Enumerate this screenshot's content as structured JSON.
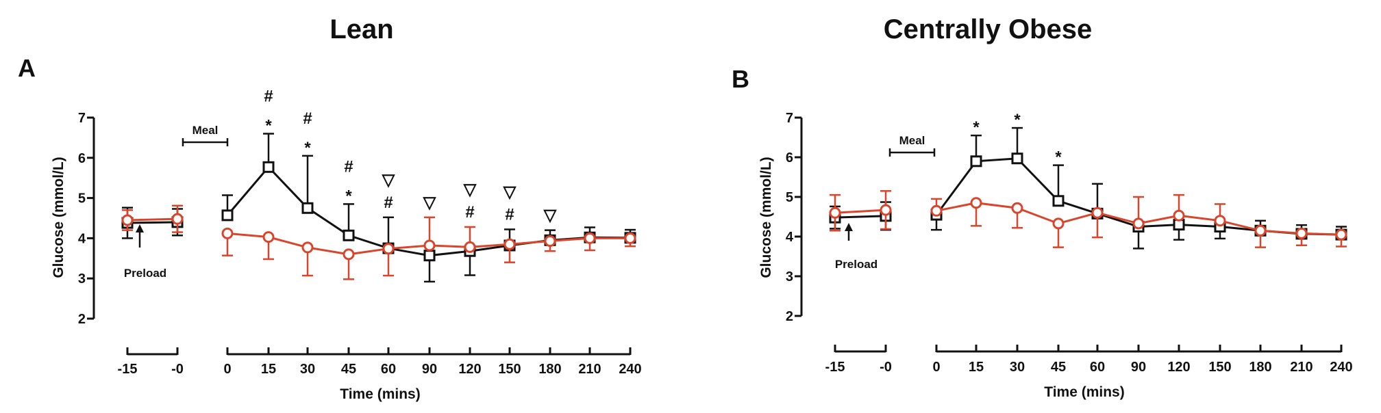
{
  "chart_data": [
    {
      "type": "line",
      "panel": "A",
      "title": "Lean",
      "xlabel": "Time (mins)",
      "ylabel": "Glucose (mmol/L)",
      "ylim": [
        2,
        7
      ],
      "yticks": [
        "2",
        "3",
        "4",
        "5",
        "6",
        "7"
      ],
      "pre_categories": [
        "-15",
        "-0"
      ],
      "categories": [
        "0",
        "15",
        "30",
        "45",
        "60",
        "90",
        "120",
        "150",
        "180",
        "210",
        "240"
      ],
      "series": [
        {
          "color": "#111111",
          "marker": "square",
          "pre_values": [
            4.38,
            4.4
          ],
          "pre_errors": [
            0.38,
            0.33
          ],
          "values": [
            4.57,
            5.77,
            4.75,
            4.07,
            3.75,
            3.57,
            3.68,
            3.82,
            3.95,
            4.02,
            4.01
          ],
          "errors": [
            0.5,
            0.83,
            1.3,
            0.78,
            0.77,
            0.65,
            0.6,
            0.4,
            0.25,
            0.25,
            0.2
          ],
          "error_dir": [
            "up",
            "up",
            "up",
            "up",
            "up",
            "down",
            "down",
            "up",
            "up",
            "up",
            "up"
          ]
        },
        {
          "color": "#d9452b",
          "marker": "circle",
          "pre_values": [
            4.45,
            4.48
          ],
          "pre_errors": [
            0.25,
            0.33
          ],
          "values": [
            4.12,
            4.03,
            3.77,
            3.6,
            3.74,
            3.82,
            3.78,
            3.85,
            3.93,
            4.0,
            4.0
          ],
          "errors": [
            0.55,
            0.55,
            0.7,
            0.62,
            0.67,
            0.7,
            0.5,
            0.45,
            0.25,
            0.3,
            0.2
          ],
          "error_dir": [
            "down",
            "down",
            "down",
            "down",
            "down",
            "up",
            "up",
            "down",
            "down",
            "down",
            "down"
          ]
        }
      ],
      "annotations": {
        "preload": "Preload",
        "meal": "Meal",
        "sig_markers": [
          {
            "cat": "15",
            "marks": [
              "*",
              "#"
            ]
          },
          {
            "cat": "30",
            "marks": [
              "*",
              "#"
            ]
          },
          {
            "cat": "45",
            "marks": [
              "*",
              "#"
            ]
          },
          {
            "cat": "60",
            "marks": [
              "#",
              "▽"
            ]
          },
          {
            "cat": "90",
            "marks": [
              "▽"
            ]
          },
          {
            "cat": "120",
            "marks": [
              "#",
              "▽"
            ]
          },
          {
            "cat": "150",
            "marks": [
              "#",
              "▽"
            ]
          },
          {
            "cat": "180",
            "marks": [
              "▽"
            ]
          }
        ]
      }
    },
    {
      "type": "line",
      "panel": "B",
      "title": "Centrally Obese",
      "xlabel": "Time (mins)",
      "ylabel": "Glucose (mmol/L)",
      "ylim": [
        2,
        7
      ],
      "yticks": [
        "2",
        "3",
        "4",
        "5",
        "6",
        "7"
      ],
      "pre_categories": [
        "-15",
        "-0"
      ],
      "categories": [
        "0",
        "15",
        "30",
        "45",
        "60",
        "90",
        "120",
        "150",
        "180",
        "210",
        "240"
      ],
      "last_tick_label": "240",
      "series": [
        {
          "color": "#111111",
          "marker": "square",
          "pre_values": [
            4.48,
            4.52
          ],
          "pre_errors": [
            0.28,
            0.35
          ],
          "values": [
            4.55,
            5.9,
            5.97,
            4.9,
            4.58,
            4.25,
            4.3,
            4.25,
            4.15,
            4.07,
            4.05
          ],
          "errors": [
            0.38,
            0.65,
            0.77,
            0.9,
            0.75,
            0.55,
            0.38,
            0.3,
            0.25,
            0.22,
            0.2
          ],
          "error_dir": [
            "down",
            "up",
            "up",
            "up",
            "up",
            "down",
            "down",
            "down",
            "up",
            "up",
            "up"
          ]
        },
        {
          "color": "#d9452b",
          "marker": "circle",
          "pre_values": [
            4.6,
            4.67
          ],
          "pre_errors": [
            0.45,
            0.48
          ],
          "values": [
            4.65,
            4.85,
            4.72,
            4.33,
            4.6,
            4.33,
            4.53,
            4.4,
            4.15,
            4.08,
            4.05
          ],
          "errors": [
            0.3,
            0.58,
            0.5,
            0.6,
            0.62,
            0.67,
            0.52,
            0.42,
            0.42,
            0.3,
            0.3
          ],
          "error_dir": [
            "up",
            "down",
            "down",
            "down",
            "down",
            "up",
            "up",
            "up",
            "down",
            "down",
            "down"
          ]
        }
      ],
      "annotations": {
        "preload": "Preload",
        "meal": "Meal",
        "sig_markers": [
          {
            "cat": "15",
            "marks": [
              "*"
            ]
          },
          {
            "cat": "30",
            "marks": [
              "*"
            ]
          },
          {
            "cat": "45",
            "marks": [
              "*"
            ]
          }
        ]
      }
    }
  ]
}
